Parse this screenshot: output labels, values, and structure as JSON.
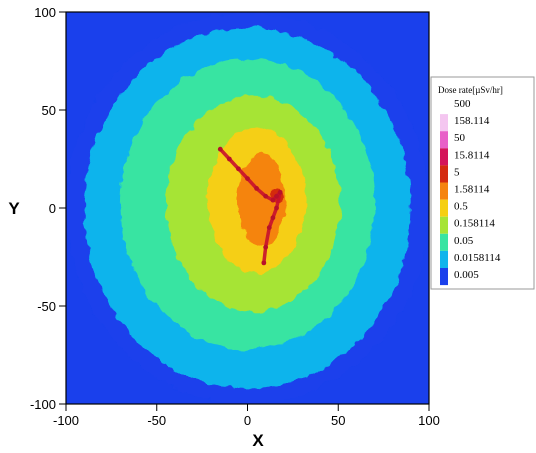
{
  "chart_data": {
    "type": "heatmap",
    "title": "",
    "xlabel": "X",
    "ylabel": "Y",
    "xlim": [
      -100,
      100
    ],
    "ylim": [
      -100,
      100
    ],
    "x_ticks": [
      -100,
      -50,
      0,
      50,
      100
    ],
    "y_ticks": [
      -100,
      -50,
      0,
      50,
      100
    ],
    "x_tick_labels": [
      "-100",
      "-50",
      "0",
      "50",
      "100"
    ],
    "y_tick_labels": [
      "-100",
      "-50",
      "0",
      "50",
      "100"
    ],
    "grid": false,
    "colorbar": {
      "title": "Dose rate[µSv/hr]",
      "placement": "right",
      "levels": [
        "500",
        "158.114",
        "50",
        "15.8114",
        "5",
        "1.58114",
        "0.5",
        "0.158114",
        "0.05",
        "0.0158114",
        "0.005"
      ],
      "colors": [
        "#ffffff",
        "#f4c6f0",
        "#e860c8",
        "#d4145a",
        "#d42a10",
        "#f58410",
        "#f5cf12",
        "#a6e436",
        "#38e4a2",
        "#10b4ec",
        "#1a40ec"
      ]
    },
    "contours": [
      {
        "level": "0.005",
        "color": "#1a40ec",
        "cx": 0,
        "cy": 0,
        "rx": 100,
        "ry": 100
      },
      {
        "level": "0.0158114",
        "color": "#10b4ec",
        "cx": 0,
        "cy": 0,
        "rx": 90,
        "ry": 92
      },
      {
        "level": "0.05",
        "color": "#38e4a2",
        "cx": 0,
        "cy": 2,
        "rx": 70,
        "ry": 74
      },
      {
        "level": "0.158114",
        "color": "#a6e436",
        "cx": 3,
        "cy": 2,
        "rx": 48,
        "ry": 55
      },
      {
        "level": "0.5",
        "color": "#f5cf12",
        "cx": 5,
        "cy": 4,
        "rx": 27,
        "ry": 37
      },
      {
        "level": "1.58114",
        "color": "#f58410",
        "cx": 8,
        "cy": 4,
        "rx": 13,
        "ry": 24
      },
      {
        "level": "5",
        "color": "#d42a10",
        "cx": 16,
        "cy": 6,
        "rx": 4,
        "ry": 4
      }
    ],
    "hotspot_path": [
      [
        -15,
        30
      ],
      [
        -10,
        25
      ],
      [
        -5,
        20
      ],
      [
        0,
        15
      ],
      [
        5,
        10
      ],
      [
        10,
        6
      ],
      [
        14,
        4
      ],
      [
        16,
        6
      ],
      [
        18,
        8
      ],
      [
        16,
        0
      ],
      [
        14,
        -5
      ],
      [
        12,
        -10
      ],
      [
        10,
        -20
      ],
      [
        9,
        -28
      ]
    ]
  }
}
